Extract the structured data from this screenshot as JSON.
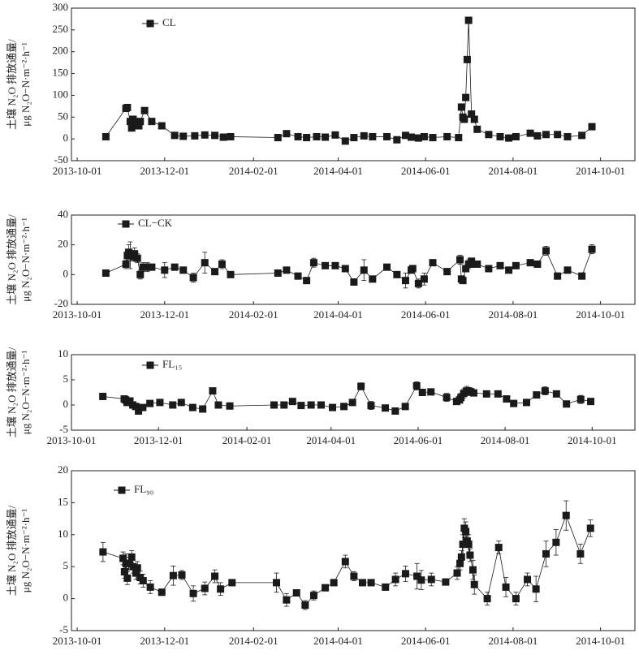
{
  "chart_data": [
    {
      "type": "line",
      "ylabel": [
        "土壤 N₂O 排放通量/",
        "μg N₂O−N·m⁻²·h⁻¹"
      ],
      "xlim": [
        "2013-09-27",
        "2014-10-25"
      ],
      "ylim": [
        -50,
        300
      ],
      "yticks": [
        -50,
        0,
        50,
        100,
        150,
        200,
        250,
        300
      ],
      "xticks": [
        "2013-10-01",
        "2013-12-01",
        "2014-02-01",
        "2014-04-01",
        "2014-06-01",
        "2014-08-01",
        "2014-10-01"
      ],
      "x": [
        "2013-10-21",
        "2013-11-04",
        "2013-11-05",
        "2013-11-07",
        "2013-11-08",
        "2013-11-09",
        "2013-11-11",
        "2013-11-13",
        "2013-11-14",
        "2013-11-17",
        "2013-11-22",
        "2013-11-29",
        "2013-12-08",
        "2013-12-14",
        "2013-12-22",
        "2013-12-29",
        "2014-01-05",
        "2014-01-11",
        "2014-01-16",
        "2014-02-18",
        "2014-02-24",
        "2014-03-04",
        "2014-03-10",
        "2014-03-17",
        "2014-03-23",
        "2014-03-30",
        "2014-04-06",
        "2014-04-12",
        "2014-04-19",
        "2014-04-25",
        "2014-05-05",
        "2014-05-12",
        "2014-05-18",
        "2014-05-22",
        "2014-05-27",
        "2014-05-31",
        "2014-06-06",
        "2014-06-16",
        "2014-06-24",
        "2014-06-26",
        "2014-06-27",
        "2014-06-28",
        "2014-06-29",
        "2014-06-30",
        "2014-07-01",
        "2014-07-03",
        "2014-07-05",
        "2014-07-07",
        "2014-07-15",
        "2014-07-23",
        "2014-07-29",
        "2014-08-03",
        "2014-08-13",
        "2014-08-18",
        "2014-08-24",
        "2014-09-01",
        "2014-09-08",
        "2014-09-18",
        "2014-09-25"
      ],
      "series": [
        {
          "name": "CL",
          "color": "#1a1a1a",
          "values": [
            5,
            70,
            72,
            40,
            25,
            45,
            35,
            30,
            40,
            65,
            40,
            30,
            8,
            6,
            7,
            9,
            8,
            4,
            5,
            3,
            12,
            5,
            3,
            5,
            4,
            9,
            -5,
            3,
            7,
            5,
            5,
            -2,
            8,
            4,
            2,
            5,
            3,
            5,
            3,
            73,
            50,
            45,
            95,
            182,
            272,
            57,
            45,
            22,
            10,
            5,
            2,
            5,
            13,
            7,
            10,
            10,
            5,
            8,
            28
          ]
        }
      ]
    },
    {
      "type": "line",
      "ylabel": [
        "土壤 N₂O 排放通量/",
        "μg N₂O−N·m⁻²·h⁻¹"
      ],
      "xlim": [
        "2013-09-27",
        "2014-10-25"
      ],
      "ylim": [
        -20,
        40
      ],
      "yticks": [
        -20,
        0,
        20,
        40
      ],
      "xticks": [
        "2013-10-01",
        "2013-12-01",
        "2014-02-01",
        "2014-04-01",
        "2014-06-01",
        "2014-08-01",
        "2014-10-01"
      ],
      "x": [
        "2013-10-21",
        "2013-11-04",
        "2013-11-05",
        "2013-11-06",
        "2013-11-07",
        "2013-11-09",
        "2013-11-10",
        "2013-11-12",
        "2013-11-14",
        "2013-11-16",
        "2013-11-19",
        "2013-11-22",
        "2013-12-01",
        "2013-12-08",
        "2013-12-14",
        "2013-12-21",
        "2013-12-29",
        "2014-01-05",
        "2014-01-10",
        "2014-01-16",
        "2014-02-18",
        "2014-02-24",
        "2014-03-04",
        "2014-03-10",
        "2014-03-15",
        "2014-03-23",
        "2014-03-30",
        "2014-04-06",
        "2014-04-12",
        "2014-04-19",
        "2014-04-25",
        "2014-05-05",
        "2014-05-12",
        "2014-05-18",
        "2014-05-22",
        "2014-05-23",
        "2014-05-27",
        "2014-05-31",
        "2014-06-06",
        "2014-06-16",
        "2014-06-25",
        "2014-06-26",
        "2014-06-27",
        "2014-06-29",
        "2014-07-01",
        "2014-07-03",
        "2014-07-05",
        "2014-07-07",
        "2014-07-15",
        "2014-07-23",
        "2014-07-29",
        "2014-08-03",
        "2014-08-13",
        "2014-08-18",
        "2014-08-24",
        "2014-09-01",
        "2014-09-08",
        "2014-09-18",
        "2014-09-25"
      ],
      "series": [
        {
          "name": "CL−CK",
          "color": "#1a1a1a",
          "values": [
            1,
            7,
            13,
            15,
            13,
            12,
            14,
            11,
            0,
            5,
            5,
            5,
            3,
            5,
            3,
            -2,
            8,
            2,
            7,
            0,
            1,
            3,
            -1,
            -4,
            8,
            6,
            6,
            4,
            -5,
            3,
            -3,
            5,
            0,
            -4,
            3,
            4,
            -6,
            -3,
            8,
            2,
            10,
            -3,
            -4,
            4,
            7,
            9,
            7,
            7,
            4,
            6,
            3,
            6,
            8,
            7,
            16,
            -1,
            3,
            -1,
            17
          ],
          "errors": [
            2,
            3,
            4,
            5,
            9,
            3,
            4,
            3,
            3,
            3,
            3,
            2,
            5,
            2,
            2,
            3,
            7,
            2,
            3,
            1,
            2,
            2,
            2,
            2,
            3,
            1,
            2,
            2,
            1,
            7,
            1,
            2,
            1,
            5,
            2,
            2,
            3,
            4,
            2,
            1,
            3,
            2,
            2,
            2,
            3,
            2,
            2,
            1,
            2,
            2,
            1,
            1,
            1,
            1,
            3,
            1,
            1,
            1,
            3
          ]
        }
      ]
    },
    {
      "type": "line",
      "ylabel": [
        "土壤 N₂O 排放通量/",
        "μg N₂O−N·m⁻²·h⁻¹"
      ],
      "xlim": [
        "2013-10-01",
        "2014-10-31"
      ],
      "ylim": [
        -5,
        10
      ],
      "yticks": [
        -5,
        0,
        5,
        10
      ],
      "xticks": [
        "2013-10-01",
        "2013-12-01",
        "2014-02-01",
        "2014-04-01",
        "2014-06-01",
        "2014-08-01",
        "2014-10-01"
      ],
      "x": [
        "2013-10-23",
        "2013-11-07",
        "2013-11-08",
        "2013-11-09",
        "2013-11-11",
        "2013-11-13",
        "2013-11-15",
        "2013-11-17",
        "2013-11-20",
        "2013-11-25",
        "2013-12-02",
        "2013-12-11",
        "2013-12-17",
        "2013-12-25",
        "2014-01-01",
        "2014-01-08",
        "2014-01-12",
        "2014-01-20",
        "2014-02-20",
        "2014-02-27",
        "2014-03-05",
        "2014-03-11",
        "2014-03-18",
        "2014-03-25",
        "2014-04-02",
        "2014-04-10",
        "2014-04-16",
        "2014-04-22",
        "2014-04-29",
        "2014-05-09",
        "2014-05-16",
        "2014-05-23",
        "2014-05-31",
        "2014-06-04",
        "2014-06-10",
        "2014-06-21",
        "2014-06-28",
        "2014-06-30",
        "2014-07-01",
        "2014-07-03",
        "2014-07-05",
        "2014-07-07",
        "2014-07-08",
        "2014-07-10",
        "2014-07-19",
        "2014-07-27",
        "2014-08-02",
        "2014-08-07",
        "2014-08-16",
        "2014-08-23",
        "2014-08-29",
        "2014-09-06",
        "2014-09-13",
        "2014-09-23",
        "2014-09-30"
      ],
      "series": [
        {
          "name": "FL₁₅",
          "color": "#1a1a1a",
          "values": [
            1.7,
            1.2,
            1,
            0.5,
            0.8,
            0,
            -0.3,
            -1.2,
            -0.5,
            0.3,
            0.5,
            0,
            0.5,
            -0.5,
            -0.8,
            2.8,
            0,
            -0.2,
            0,
            0,
            0.7,
            -0.1,
            0,
            0,
            -0.5,
            -0.3,
            0.5,
            3.7,
            -0.1,
            -0.6,
            -1.2,
            -0.3,
            3.8,
            2.5,
            2.6,
            1.5,
            0.7,
            1,
            1.5,
            2.3,
            2.8,
            2.7,
            2.6,
            2.4,
            2.2,
            2.2,
            1.2,
            0.3,
            0.5,
            2,
            2.8,
            2.2,
            0.2,
            1.1,
            0.7
          ],
          "errors": [
            0.3,
            0.4,
            0.4,
            0.4,
            0.4,
            0.4,
            0.4,
            0.5,
            0.4,
            0.3,
            0.3,
            0.3,
            0.3,
            0.3,
            0.3,
            0.6,
            0.3,
            0.3,
            0.3,
            0.3,
            0.3,
            0.3,
            0.3,
            0.3,
            0.3,
            0.3,
            0.5,
            0.7,
            0.8,
            0.3,
            0.3,
            0.3,
            0.8,
            0.4,
            0.4,
            0.8,
            0.5,
            0.5,
            0.8,
            0.9,
            0.9,
            0.8,
            0.7,
            0.6,
            0.4,
            0.4,
            0.4,
            0.4,
            0.4,
            0.6,
            0.8,
            0.5,
            0.3,
            0.8,
            0.4
          ]
        }
      ]
    },
    {
      "type": "line",
      "ylabel": [
        "土壤 N₂O 排放通量/",
        "μg N₂O−N·m⁻²·h⁻¹"
      ],
      "xlim": [
        "2013-09-27",
        "2014-10-25"
      ],
      "ylim": [
        -5,
        20
      ],
      "yticks": [
        -5,
        0,
        5,
        10,
        15,
        20
      ],
      "xticks": [
        "2013-10-01",
        "2013-12-01",
        "2014-02-01",
        "2014-04-01",
        "2014-06-01",
        "2014-08-01",
        "2014-10-01"
      ],
      "x": [
        "2013-10-19",
        "2013-11-02",
        "2013-11-03",
        "2013-11-04",
        "2013-11-05",
        "2013-11-06",
        "2013-11-08",
        "2013-11-09",
        "2013-11-11",
        "2013-11-12",
        "2013-11-14",
        "2013-11-16",
        "2013-11-21",
        "2013-11-29",
        "2013-12-07",
        "2013-12-13",
        "2013-12-21",
        "2013-12-29",
        "2014-01-05",
        "2014-01-09",
        "2014-01-17",
        "2014-02-17",
        "2014-02-24",
        "2014-03-03",
        "2014-03-09",
        "2014-03-15",
        "2014-03-23",
        "2014-03-29",
        "2014-04-06",
        "2014-04-12",
        "2014-04-18",
        "2014-04-24",
        "2014-05-04",
        "2014-05-11",
        "2014-05-18",
        "2014-05-26",
        "2014-05-29",
        "2014-06-05",
        "2014-06-15",
        "2014-06-23",
        "2014-06-25",
        "2014-06-26",
        "2014-06-27",
        "2014-06-28",
        "2014-06-29",
        "2014-06-30",
        "2014-07-01",
        "2014-07-02",
        "2014-07-04",
        "2014-07-05",
        "2014-07-14",
        "2014-07-22",
        "2014-07-27",
        "2014-08-03",
        "2014-08-11",
        "2014-08-17",
        "2014-08-24",
        "2014-08-31",
        "2014-09-07",
        "2014-09-17",
        "2014-09-24"
      ],
      "series": [
        {
          "name": "FL₉₀",
          "color": "#1a1a1a",
          "values": [
            7.3,
            6.3,
            4.2,
            5.5,
            3.2,
            5.5,
            6.5,
            5,
            4,
            4.8,
            3.3,
            2.8,
            1.8,
            1,
            3.6,
            3.7,
            0.8,
            1.6,
            3.5,
            1.5,
            2.5,
            2.5,
            -0.2,
            0.9,
            -1,
            0.5,
            1.7,
            2.5,
            5.8,
            3.5,
            2.5,
            2.5,
            1.8,
            3,
            3.9,
            3.5,
            2.9,
            3,
            2.6,
            4,
            5.5,
            6.5,
            8.5,
            11,
            10.5,
            9,
            8.5,
            6.8,
            4.5,
            2.2,
            0,
            8,
            1.8,
            0,
            3,
            1.5,
            7,
            8.8,
            13,
            7,
            11
          ],
          "errors": [
            1.5,
            1,
            1,
            1.5,
            1,
            1,
            1,
            1,
            1,
            1,
            1,
            1,
            1,
            0.5,
            1.5,
            0.7,
            1.2,
            1,
            1,
            1,
            0.5,
            1.5,
            1,
            0.5,
            0.7,
            0.7,
            0.5,
            0.5,
            1,
            0.7,
            0.5,
            0.5,
            0.5,
            1,
            1.2,
            2,
            1.5,
            1,
            0.5,
            1,
            1,
            1,
            1.5,
            1.5,
            1.5,
            1,
            1.5,
            1,
            1.5,
            1.5,
            1,
            1,
            1.5,
            1,
            1,
            2,
            2,
            2,
            2.3,
            1.5,
            1.3
          ]
        }
      ]
    }
  ]
}
